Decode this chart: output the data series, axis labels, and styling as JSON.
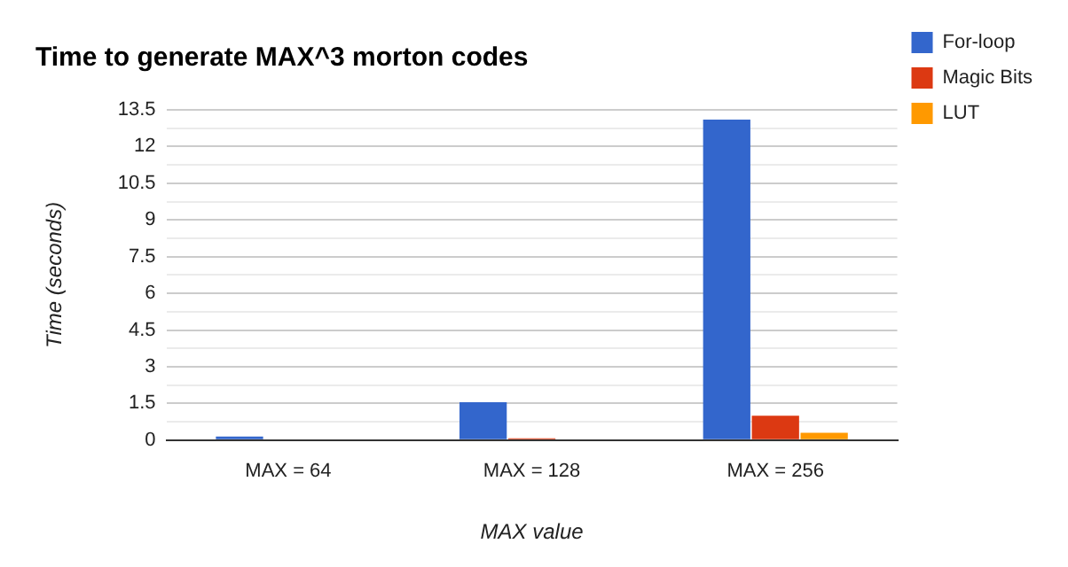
{
  "chart_data": {
    "type": "bar",
    "title": "Time to generate MAX^3 morton codes",
    "xlabel": "MAX value",
    "ylabel": "Time (seconds)",
    "categories": [
      "MAX = 64",
      "MAX = 128",
      "MAX = 256"
    ],
    "series": [
      {
        "name": "For-loop",
        "color": "#3366cc",
        "values": [
          0.15,
          1.55,
          13.1
        ]
      },
      {
        "name": "Magic Bits",
        "color": "#dc3912",
        "values": [
          null,
          0.07,
          1.0
        ]
      },
      {
        "name": "LUT",
        "color": "#ff9900",
        "values": [
          null,
          null,
          0.3
        ]
      }
    ],
    "ylim": [
      0,
      13.5
    ],
    "yticks": [
      0,
      {
        "value": 0.75,
        "label": null
      },
      1.5,
      {
        "value": 2.25,
        "label": null
      },
      3,
      {
        "value": 3.75,
        "label": null
      },
      4.5,
      {
        "value": 5.25,
        "label": null
      },
      6,
      {
        "value": 6.75,
        "label": null
      },
      7.5,
      {
        "value": 8.25,
        "label": null
      },
      9,
      {
        "value": 9.75,
        "label": null
      },
      10.5,
      {
        "value": 11.25,
        "label": null
      },
      12,
      {
        "value": 12.75,
        "label": null
      },
      13.5
    ],
    "grid": "y",
    "legend": "top right"
  }
}
